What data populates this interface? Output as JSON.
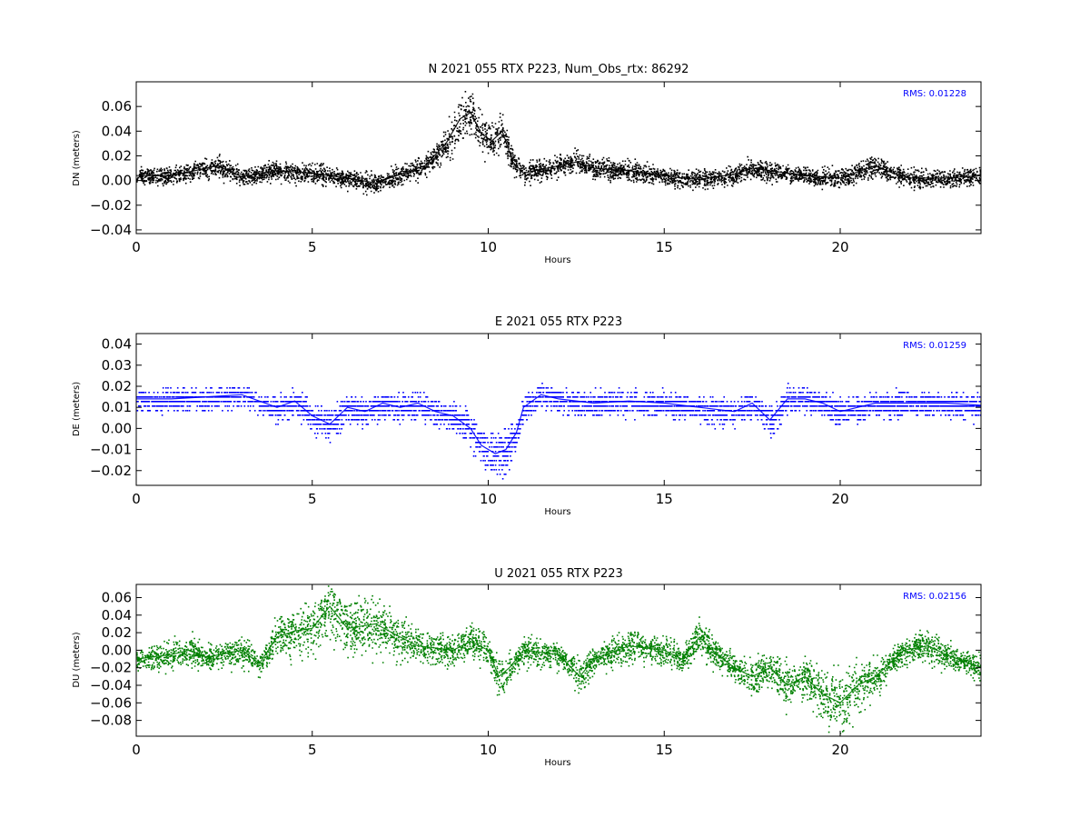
{
  "chart_data": [
    {
      "type": "scatter",
      "title": "N 2021 055 RTX  P223, Num_Obs_rtx: 86292",
      "xlabel": "Hours",
      "ylabel": "DN (meters)",
      "xlim": [
        0,
        24
      ],
      "ylim": [
        -0.043,
        0.08
      ],
      "xticks": [
        "0",
        "5",
        "10",
        "15",
        "20"
      ],
      "yticks": [
        "0.06",
        "0.04",
        "0.02",
        "0.00",
        "−0.02",
        "−0.04"
      ],
      "grid": false,
      "color": "#000000",
      "annotation": "RMS:  0.01228",
      "series": [
        {
          "x": [
            0,
            1,
            2,
            2.3,
            3,
            4,
            5,
            6,
            6.8,
            7.5,
            8.2,
            8.8,
            9.2,
            9.5,
            9.8,
            10.1,
            10.4,
            10.7,
            11,
            12,
            12.5,
            13,
            14,
            15,
            15.5,
            16,
            17,
            17.5,
            18,
            18.5,
            19,
            20,
            21,
            21.5,
            22,
            23,
            24
          ],
          "y": [
            0.004,
            0.004,
            0.01,
            0.012,
            0.003,
            0.008,
            0.006,
            0.002,
            -0.002,
            0.005,
            0.012,
            0.03,
            0.05,
            0.055,
            0.038,
            0.032,
            0.04,
            0.015,
            0.006,
            0.012,
            0.015,
            0.01,
            0.008,
            0.004,
            0.002,
            0.001,
            0.005,
            0.01,
            0.008,
            0.006,
            0.004,
            0.002,
            0.012,
            0.006,
            0.002,
            0.002,
            0.004
          ]
        }
      ]
    },
    {
      "type": "scatter",
      "title": "E 2021 055 RTX  P223",
      "xlabel": "Hours",
      "ylabel": "DE (meters)",
      "xlim": [
        0,
        24
      ],
      "ylim": [
        -0.027,
        0.045
      ],
      "xticks": [
        "0",
        "5",
        "10",
        "15",
        "20"
      ],
      "yticks": [
        "0.04",
        "0.03",
        "0.02",
        "0.01",
        "0.00",
        "−0.01",
        "−0.02"
      ],
      "grid": false,
      "color": "#0000ff",
      "annotation": "RMS:  0.01259",
      "series": [
        {
          "x": [
            0,
            1,
            2,
            3,
            4,
            4.5,
            5,
            5.5,
            6,
            6.5,
            7,
            7.5,
            8,
            8.5,
            9,
            9.5,
            9.8,
            10.2,
            10.5,
            10.8,
            11,
            11.5,
            12,
            13,
            14,
            15,
            16,
            17,
            17.5,
            18,
            18.5,
            19,
            19.5,
            20,
            21,
            22,
            23,
            24
          ],
          "y": [
            0.014,
            0.014,
            0.015,
            0.016,
            0.01,
            0.013,
            0.006,
            0.002,
            0.01,
            0.008,
            0.012,
            0.01,
            0.012,
            0.008,
            0.006,
            0.0,
            -0.008,
            -0.012,
            -0.01,
            -0.002,
            0.01,
            0.016,
            0.014,
            0.012,
            0.013,
            0.012,
            0.01,
            0.008,
            0.012,
            0.004,
            0.014,
            0.014,
            0.012,
            0.008,
            0.012,
            0.012,
            0.012,
            0.011
          ]
        }
      ]
    },
    {
      "type": "scatter",
      "title": "U 2021 055 RTX  P223",
      "xlabel": "Hours",
      "ylabel": "DU (meters)",
      "xlim": [
        0,
        24
      ],
      "ylim": [
        -0.098,
        0.075
      ],
      "xticks": [
        "0",
        "5",
        "10",
        "15",
        "20"
      ],
      "yticks": [
        "0.06",
        "0.04",
        "0.02",
        "0.00",
        "−0.02",
        "−0.04",
        "−0.06",
        "−0.08"
      ],
      "grid": false,
      "color": "#008000",
      "annotation": "RMS:  0.02156",
      "series": [
        {
          "x": [
            0,
            1,
            1.5,
            2,
            3,
            3.5,
            4,
            4.5,
            5,
            5.5,
            6,
            6.8,
            7.5,
            8,
            9,
            9.5,
            10,
            10.3,
            10.6,
            11,
            12,
            12.6,
            13,
            14,
            15,
            15.5,
            16,
            16.5,
            17,
            17.5,
            18,
            18.5,
            19,
            19.5,
            20,
            20.5,
            21,
            21.8,
            22.5,
            23,
            24
          ],
          "y": [
            -0.01,
            -0.005,
            0.0,
            -0.008,
            0.0,
            -0.015,
            0.015,
            0.022,
            0.025,
            0.05,
            0.025,
            0.03,
            0.015,
            0.005,
            0.0,
            0.01,
            0.0,
            -0.03,
            -0.02,
            0.0,
            -0.005,
            -0.03,
            -0.01,
            0.005,
            0.0,
            -0.01,
            0.015,
            -0.005,
            -0.02,
            -0.03,
            -0.02,
            -0.04,
            -0.03,
            -0.05,
            -0.06,
            -0.04,
            -0.03,
            0.0,
            0.005,
            -0.005,
            -0.02
          ]
        }
      ]
    }
  ]
}
